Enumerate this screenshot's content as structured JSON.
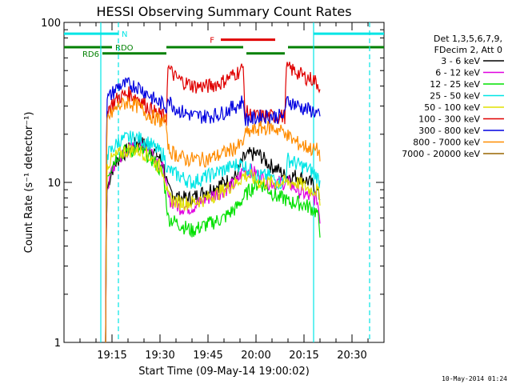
{
  "chart_data": {
    "type": "line",
    "title": "HESSI Observing Summary Count Rates",
    "xlabel": "Start Time (09-May-14 19:00:02)",
    "ylabel": "Count Rate (s⁻¹ detector⁻¹)",
    "yscale": "log",
    "ylim": [
      1,
      100
    ],
    "y_ticks": [
      {
        "v": 1,
        "label": "1"
      },
      {
        "v": 10,
        "label": "10"
      },
      {
        "v": 100,
        "label": "100"
      }
    ],
    "xlim_min": [
      0,
      100
    ],
    "x_ticks": [
      {
        "min": 15,
        "label": "19:15"
      },
      {
        "min": 30,
        "label": "19:30"
      },
      {
        "min": 45,
        "label": "19:45"
      },
      {
        "min": 60,
        "label": "20:00"
      },
      {
        "min": 75,
        "label": "20:15"
      },
      {
        "min": 90,
        "label": "20:30"
      }
    ],
    "legend_title": [
      "Det 1,3,5,6,7,9,",
      "FDecim 2, Att 0"
    ],
    "legend_placement": "right",
    "timestamp": "10-May-2014 01:24",
    "flags": [
      {
        "label": "N",
        "color": "#00e5e5",
        "start": 0,
        "end": 17,
        "level": 85
      },
      {
        "label": "",
        "color": "#00e5e5",
        "start": 78,
        "end": 100,
        "level": 85
      },
      {
        "label": "F",
        "color": "#e00000",
        "start": 49,
        "end": 66,
        "level": 78
      },
      {
        "label": "RDO",
        "color": "#008000",
        "start": 0,
        "end": 15,
        "level": 70
      },
      {
        "label": "",
        "color": "#008000",
        "start": 32,
        "end": 56,
        "level": 70
      },
      {
        "label": "",
        "color": "#008000",
        "start": 70,
        "end": 100,
        "level": 70
      },
      {
        "label": "RD6",
        "color": "#008000",
        "start": 12,
        "end": 32,
        "level": 64
      },
      {
        "label": "",
        "color": "#008000",
        "start": 57,
        "end": 69,
        "level": 64
      }
    ],
    "vlines": [
      {
        "min": 11.5,
        "color": "#00e5e5",
        "dash": false
      },
      {
        "min": 17,
        "color": "#00e5e5",
        "dash": true
      },
      {
        "min": 78,
        "color": "#00e5e5",
        "dash": false
      },
      {
        "min": 95.5,
        "color": "#00e5e5",
        "dash": true
      }
    ],
    "series": [
      {
        "name": "3 - 6 keV",
        "color": "#000000",
        "points": [
          [
            13,
            1
          ],
          [
            13.5,
            9
          ],
          [
            15,
            12
          ],
          [
            17,
            14
          ],
          [
            20,
            16
          ],
          [
            23,
            18
          ],
          [
            26,
            17
          ],
          [
            29,
            15
          ],
          [
            31,
            13
          ],
          [
            32.5,
            9
          ],
          [
            36,
            8
          ],
          [
            40,
            8
          ],
          [
            45,
            9
          ],
          [
            50,
            10
          ],
          [
            54,
            11
          ],
          [
            56,
            14
          ],
          [
            58,
            15
          ],
          [
            61,
            15
          ],
          [
            64,
            13
          ],
          [
            67,
            12
          ],
          [
            69,
            11
          ],
          [
            70,
            11
          ],
          [
            73,
            11
          ],
          [
            77,
            10
          ],
          [
            79,
            9
          ],
          [
            80,
            8
          ]
        ]
      },
      {
        "name": "6 - 12 keV",
        "color": "#e000e0",
        "points": [
          [
            13,
            1
          ],
          [
            13.5,
            9
          ],
          [
            15,
            12
          ],
          [
            17,
            14
          ],
          [
            20,
            16
          ],
          [
            23,
            17
          ],
          [
            26,
            17
          ],
          [
            29,
            14
          ],
          [
            31,
            12
          ],
          [
            32.5,
            8
          ],
          [
            36,
            7
          ],
          [
            40,
            7
          ],
          [
            45,
            8
          ],
          [
            50,
            9
          ],
          [
            54,
            10
          ],
          [
            56,
            12
          ],
          [
            58,
            12
          ],
          [
            61,
            11
          ],
          [
            64,
            10
          ],
          [
            67,
            10
          ],
          [
            69,
            10
          ],
          [
            70,
            10
          ],
          [
            73,
            9
          ],
          [
            77,
            8
          ],
          [
            79,
            8
          ],
          [
            80,
            6
          ]
        ]
      },
      {
        "name": "12 - 25 keV",
        "color": "#00e000",
        "points": [
          [
            13,
            1
          ],
          [
            13.5,
            11
          ],
          [
            15,
            13
          ],
          [
            17,
            15
          ],
          [
            20,
            16
          ],
          [
            23,
            16
          ],
          [
            26,
            15
          ],
          [
            29,
            13
          ],
          [
            31,
            11
          ],
          [
            32.5,
            6
          ],
          [
            36,
            5.5
          ],
          [
            40,
            5
          ],
          [
            45,
            5.5
          ],
          [
            50,
            6
          ],
          [
            54,
            7
          ],
          [
            56,
            8
          ],
          [
            58,
            9
          ],
          [
            61,
            10
          ],
          [
            64,
            9
          ],
          [
            67,
            8
          ],
          [
            69,
            8
          ],
          [
            70,
            7.5
          ],
          [
            73,
            7.5
          ],
          [
            77,
            7
          ],
          [
            79,
            6.5
          ],
          [
            80,
            5
          ]
        ]
      },
      {
        "name": "25 - 50 keV",
        "color": "#00e5e5",
        "points": [
          [
            13,
            1
          ],
          [
            13.5,
            15
          ],
          [
            15,
            16
          ],
          [
            17,
            18
          ],
          [
            20,
            19
          ],
          [
            23,
            19
          ],
          [
            26,
            18
          ],
          [
            29,
            16
          ],
          [
            31,
            15
          ],
          [
            32.5,
            12
          ],
          [
            36,
            11
          ],
          [
            40,
            10
          ],
          [
            45,
            11
          ],
          [
            50,
            12
          ],
          [
            54,
            13
          ],
          [
            56,
            13
          ],
          [
            58,
            12
          ],
          [
            61,
            11
          ],
          [
            64,
            11
          ],
          [
            67,
            10
          ],
          [
            69,
            10
          ],
          [
            70,
            14
          ],
          [
            73,
            13
          ],
          [
            77,
            12
          ],
          [
            79,
            11
          ],
          [
            80,
            10
          ]
        ]
      },
      {
        "name": "50 - 100 keV",
        "color": "#e0e000",
        "points": [
          [
            13,
            1
          ],
          [
            13.5,
            13
          ],
          [
            15,
            14
          ],
          [
            17,
            15
          ],
          [
            20,
            16
          ],
          [
            23,
            16
          ],
          [
            26,
            15
          ],
          [
            29,
            13
          ],
          [
            31,
            12
          ],
          [
            32.5,
            8
          ],
          [
            36,
            7.5
          ],
          [
            40,
            7.5
          ],
          [
            45,
            8
          ],
          [
            50,
            9
          ],
          [
            54,
            10
          ],
          [
            56,
            11
          ],
          [
            58,
            11
          ],
          [
            61,
            10
          ],
          [
            64,
            10
          ],
          [
            67,
            10
          ],
          [
            69,
            10
          ],
          [
            70,
            10
          ],
          [
            73,
            10
          ],
          [
            77,
            9
          ],
          [
            79,
            9
          ],
          [
            80,
            8
          ]
        ]
      },
      {
        "name": "100 - 300 keV",
        "color": "#e00000",
        "points": [
          [
            13,
            1
          ],
          [
            13.5,
            28
          ],
          [
            15,
            31
          ],
          [
            17,
            34
          ],
          [
            20,
            36
          ],
          [
            23,
            34
          ],
          [
            26,
            30
          ],
          [
            29,
            27
          ],
          [
            31,
            26
          ],
          [
            32,
            25
          ],
          [
            32.5,
            52
          ],
          [
            35,
            45
          ],
          [
            38,
            42
          ],
          [
            41,
            40
          ],
          [
            45,
            40
          ],
          [
            49,
            42
          ],
          [
            52,
            46
          ],
          [
            55,
            50
          ],
          [
            56,
            52
          ],
          [
            56.5,
            28
          ],
          [
            59,
            26
          ],
          [
            62,
            26
          ],
          [
            65,
            26
          ],
          [
            68,
            26
          ],
          [
            69,
            26
          ],
          [
            69.5,
            52
          ],
          [
            72,
            50
          ],
          [
            75,
            46
          ],
          [
            78,
            44
          ],
          [
            79,
            42
          ],
          [
            80,
            40
          ]
        ]
      },
      {
        "name": "300 - 800 keV",
        "color": "#0000e0",
        "points": [
          [
            13,
            1
          ],
          [
            13.5,
            33
          ],
          [
            15,
            36
          ],
          [
            17,
            40
          ],
          [
            20,
            41
          ],
          [
            23,
            40
          ],
          [
            26,
            36
          ],
          [
            29,
            32
          ],
          [
            31,
            31
          ],
          [
            32,
            30
          ],
          [
            32.5,
            33
          ],
          [
            35,
            29
          ],
          [
            38,
            27
          ],
          [
            41,
            26
          ],
          [
            45,
            26
          ],
          [
            49,
            27
          ],
          [
            52,
            29
          ],
          [
            55,
            31
          ],
          [
            56,
            33
          ],
          [
            56.5,
            25
          ],
          [
            59,
            25
          ],
          [
            62,
            26
          ],
          [
            65,
            26
          ],
          [
            68,
            26
          ],
          [
            69,
            26
          ],
          [
            69.5,
            33
          ],
          [
            72,
            31
          ],
          [
            75,
            29
          ],
          [
            78,
            28
          ],
          [
            79,
            27
          ],
          [
            80,
            25
          ]
        ]
      },
      {
        "name": "800 - 7000 keV",
        "color": "#ff8c00",
        "points": [
          [
            13,
            1
          ],
          [
            13.5,
            25
          ],
          [
            15,
            27
          ],
          [
            17,
            30
          ],
          [
            20,
            32
          ],
          [
            23,
            30
          ],
          [
            26,
            27
          ],
          [
            29,
            25
          ],
          [
            31,
            24
          ],
          [
            32,
            24
          ],
          [
            32.5,
            16
          ],
          [
            35,
            15
          ],
          [
            38,
            14
          ],
          [
            41,
            14
          ],
          [
            45,
            14
          ],
          [
            49,
            15
          ],
          [
            52,
            16
          ],
          [
            55,
            17
          ],
          [
            56,
            18
          ],
          [
            56.5,
            20
          ],
          [
            59,
            21
          ],
          [
            62,
            22
          ],
          [
            65,
            22
          ],
          [
            68,
            21
          ],
          [
            69,
            21
          ],
          [
            69.5,
            20
          ],
          [
            72,
            18
          ],
          [
            75,
            17
          ],
          [
            78,
            16
          ],
          [
            79,
            16
          ],
          [
            80,
            15
          ]
        ]
      },
      {
        "name": "7000 - 20000 keV",
        "color": "#996600",
        "points": []
      }
    ]
  }
}
